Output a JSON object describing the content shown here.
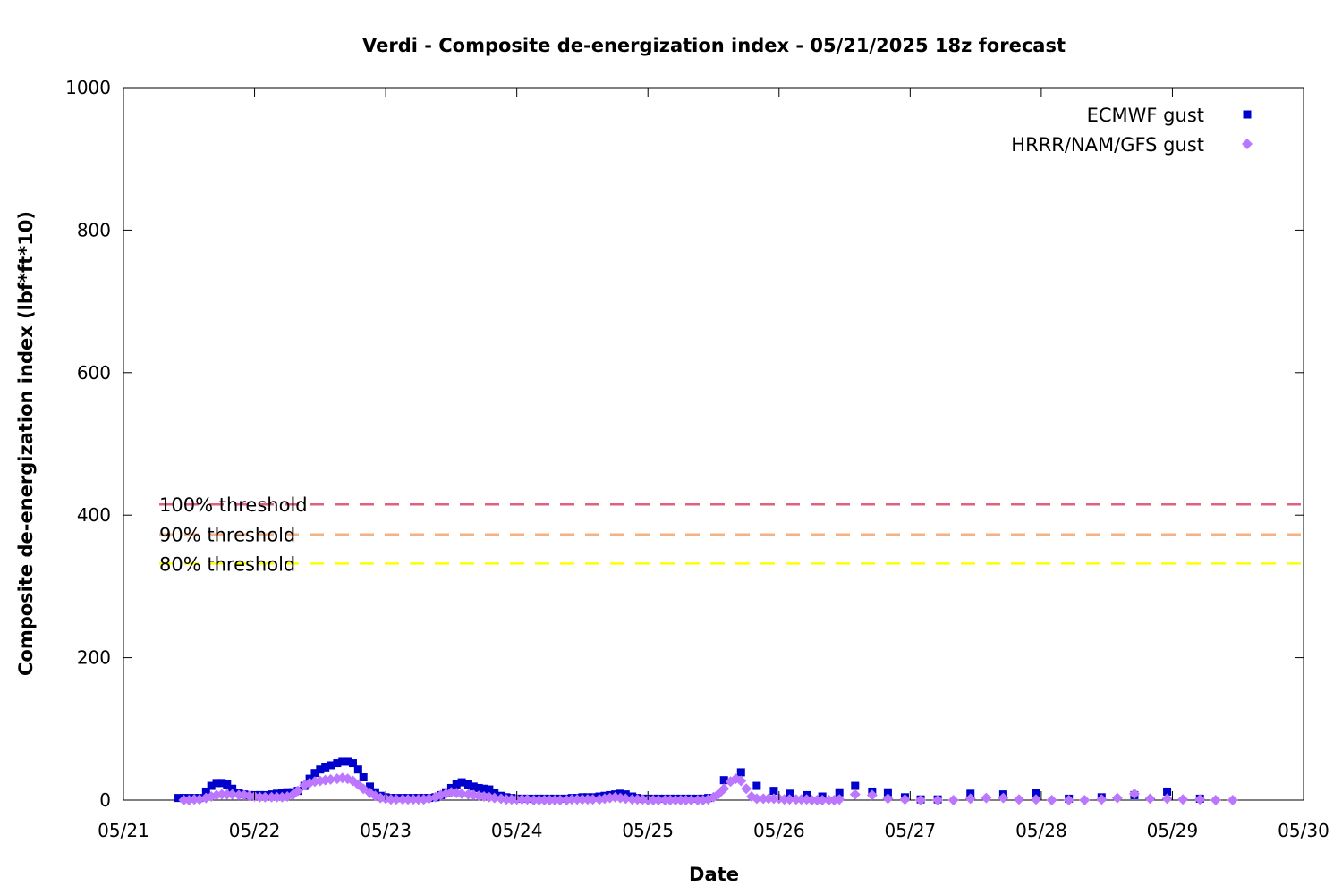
{
  "chart_data": {
    "type": "scatter",
    "title": "Verdi - Composite de-energization index - 05/21/2025 18z forecast",
    "xlabel": "Date",
    "ylabel": "Composite de-energization index (lbf*ft*10)",
    "x_range_days": [
      21,
      30
    ],
    "x_ticks": [
      "05/21",
      "05/22",
      "05/23",
      "05/24",
      "05/25",
      "05/26",
      "05/27",
      "05/28",
      "05/29",
      "05/30"
    ],
    "ylim": [
      0,
      1000
    ],
    "y_ticks": [
      "0",
      "200",
      "400",
      "600",
      "800",
      "1000"
    ],
    "y_tick_values": [
      0,
      200,
      400,
      600,
      800,
      1000
    ],
    "grid": false,
    "legend_position": "top-right",
    "thresholds": [
      {
        "label": "100% threshold",
        "value": 415,
        "color": "#e0607e"
      },
      {
        "label": "90% threshold",
        "value": 373,
        "color": "#f4b183"
      },
      {
        "label": "80% threshold",
        "value": 332,
        "color": "#ffff00"
      }
    ],
    "series": [
      {
        "name": "ECMWF gust",
        "marker": "square",
        "color": "#0000cc",
        "points": [
          [
            21.42,
            3
          ],
          [
            21.46,
            3
          ],
          [
            21.5,
            3
          ],
          [
            21.54,
            3
          ],
          [
            21.58,
            3
          ],
          [
            21.63,
            12
          ],
          [
            21.67,
            20
          ],
          [
            21.71,
            24
          ],
          [
            21.75,
            24
          ],
          [
            21.79,
            22
          ],
          [
            21.83,
            16
          ],
          [
            21.88,
            10
          ],
          [
            21.92,
            8
          ],
          [
            21.96,
            7
          ],
          [
            22.0,
            7
          ],
          [
            22.04,
            7
          ],
          [
            22.08,
            7
          ],
          [
            22.13,
            8
          ],
          [
            22.17,
            9
          ],
          [
            22.21,
            10
          ],
          [
            22.25,
            11
          ],
          [
            22.29,
            11
          ],
          [
            22.33,
            13
          ],
          [
            22.38,
            20
          ],
          [
            22.42,
            30
          ],
          [
            22.46,
            38
          ],
          [
            22.5,
            43
          ],
          [
            22.54,
            46
          ],
          [
            22.58,
            49
          ],
          [
            22.63,
            52
          ],
          [
            22.67,
            54
          ],
          [
            22.71,
            54
          ],
          [
            22.75,
            52
          ],
          [
            22.79,
            43
          ],
          [
            22.83,
            32
          ],
          [
            22.88,
            19
          ],
          [
            22.92,
            11
          ],
          [
            22.96,
            6
          ],
          [
            23.0,
            4
          ],
          [
            23.04,
            3
          ],
          [
            23.08,
            3
          ],
          [
            23.13,
            3
          ],
          [
            23.17,
            3
          ],
          [
            23.21,
            3
          ],
          [
            23.25,
            3
          ],
          [
            23.29,
            3
          ],
          [
            23.33,
            3
          ],
          [
            23.38,
            4
          ],
          [
            23.42,
            7
          ],
          [
            23.46,
            11
          ],
          [
            23.5,
            17
          ],
          [
            23.54,
            22
          ],
          [
            23.58,
            25
          ],
          [
            23.63,
            22
          ],
          [
            23.67,
            19
          ],
          [
            23.71,
            17
          ],
          [
            23.75,
            16
          ],
          [
            23.79,
            15
          ],
          [
            23.83,
            10
          ],
          [
            23.88,
            6
          ],
          [
            23.92,
            4
          ],
          [
            23.96,
            3
          ],
          [
            24.0,
            2
          ],
          [
            24.04,
            2
          ],
          [
            24.08,
            2
          ],
          [
            24.13,
            2
          ],
          [
            24.17,
            2
          ],
          [
            24.21,
            2
          ],
          [
            24.25,
            2
          ],
          [
            24.29,
            2
          ],
          [
            24.33,
            2
          ],
          [
            24.38,
            2
          ],
          [
            24.42,
            3
          ],
          [
            24.46,
            3
          ],
          [
            24.5,
            4
          ],
          [
            24.54,
            4
          ],
          [
            24.58,
            4
          ],
          [
            24.63,
            5
          ],
          [
            24.67,
            6
          ],
          [
            24.71,
            7
          ],
          [
            24.75,
            8
          ],
          [
            24.79,
            9
          ],
          [
            24.83,
            8
          ],
          [
            24.88,
            5
          ],
          [
            24.92,
            3
          ],
          [
            24.96,
            2
          ],
          [
            25.0,
            2
          ],
          [
            25.04,
            2
          ],
          [
            25.08,
            2
          ],
          [
            25.13,
            2
          ],
          [
            25.17,
            2
          ],
          [
            25.21,
            2
          ],
          [
            25.25,
            2
          ],
          [
            25.29,
            2
          ],
          [
            25.33,
            2
          ],
          [
            25.38,
            2
          ],
          [
            25.42,
            2
          ],
          [
            25.46,
            3
          ],
          [
            25.58,
            28
          ],
          [
            25.71,
            39
          ],
          [
            25.83,
            20
          ],
          [
            25.96,
            13
          ],
          [
            26.08,
            9
          ],
          [
            26.21,
            7
          ],
          [
            26.33,
            5
          ],
          [
            26.46,
            11
          ],
          [
            26.58,
            20
          ],
          [
            26.71,
            12
          ],
          [
            26.83,
            11
          ],
          [
            26.96,
            4
          ],
          [
            27.08,
            1
          ],
          [
            27.21,
            1
          ],
          [
            27.46,
            9
          ],
          [
            27.71,
            8
          ],
          [
            27.96,
            10
          ],
          [
            28.21,
            2
          ],
          [
            28.46,
            4
          ],
          [
            28.71,
            7
          ],
          [
            28.96,
            12
          ],
          [
            29.21,
            2
          ]
        ]
      },
      {
        "name": "HRRR/NAM/GFS gust",
        "marker": "diamond",
        "color": "#bb77ff",
        "points": [
          [
            21.46,
            0
          ],
          [
            21.5,
            0
          ],
          [
            21.54,
            1
          ],
          [
            21.58,
            1
          ],
          [
            21.63,
            3
          ],
          [
            21.67,
            5
          ],
          [
            21.71,
            7
          ],
          [
            21.75,
            8
          ],
          [
            21.79,
            8
          ],
          [
            21.83,
            8
          ],
          [
            21.88,
            7
          ],
          [
            21.92,
            7
          ],
          [
            21.96,
            6
          ],
          [
            22.0,
            5
          ],
          [
            22.04,
            4
          ],
          [
            22.08,
            4
          ],
          [
            22.13,
            4
          ],
          [
            22.17,
            4
          ],
          [
            22.21,
            4
          ],
          [
            22.25,
            5
          ],
          [
            22.29,
            7
          ],
          [
            22.33,
            13
          ],
          [
            22.38,
            21
          ],
          [
            22.42,
            24
          ],
          [
            22.46,
            26
          ],
          [
            22.5,
            27
          ],
          [
            22.54,
            28
          ],
          [
            22.58,
            29
          ],
          [
            22.63,
            30
          ],
          [
            22.67,
            31
          ],
          [
            22.71,
            30
          ],
          [
            22.75,
            27
          ],
          [
            22.79,
            22
          ],
          [
            22.83,
            16
          ],
          [
            22.88,
            10
          ],
          [
            22.92,
            6
          ],
          [
            22.96,
            3
          ],
          [
            23.0,
            2
          ],
          [
            23.04,
            1
          ],
          [
            23.08,
            1
          ],
          [
            23.13,
            1
          ],
          [
            23.17,
            1
          ],
          [
            23.21,
            1
          ],
          [
            23.25,
            1
          ],
          [
            23.29,
            1
          ],
          [
            23.33,
            2
          ],
          [
            23.38,
            4
          ],
          [
            23.42,
            7
          ],
          [
            23.46,
            9
          ],
          [
            23.5,
            11
          ],
          [
            23.54,
            10
          ],
          [
            23.58,
            9
          ],
          [
            23.63,
            8
          ],
          [
            23.67,
            7
          ],
          [
            23.71,
            6
          ],
          [
            23.75,
            5
          ],
          [
            23.79,
            4
          ],
          [
            23.83,
            3
          ],
          [
            23.88,
            2
          ],
          [
            23.92,
            1
          ],
          [
            23.96,
            1
          ],
          [
            24.0,
            1
          ],
          [
            24.04,
            1
          ],
          [
            24.08,
            1
          ],
          [
            24.13,
            0
          ],
          [
            24.17,
            0
          ],
          [
            24.21,
            0
          ],
          [
            24.25,
            0
          ],
          [
            24.29,
            0
          ],
          [
            24.33,
            0
          ],
          [
            24.38,
            0
          ],
          [
            24.42,
            1
          ],
          [
            24.46,
            1
          ],
          [
            24.5,
            1
          ],
          [
            24.54,
            1
          ],
          [
            24.58,
            1
          ],
          [
            24.63,
            1
          ],
          [
            24.67,
            2
          ],
          [
            24.71,
            3
          ],
          [
            24.75,
            4
          ],
          [
            24.79,
            3
          ],
          [
            24.83,
            2
          ],
          [
            24.88,
            1
          ],
          [
            24.92,
            1
          ],
          [
            24.96,
            1
          ],
          [
            25.0,
            0
          ],
          [
            25.04,
            0
          ],
          [
            25.08,
            0
          ],
          [
            25.13,
            0
          ],
          [
            25.17,
            0
          ],
          [
            25.21,
            0
          ],
          [
            25.25,
            0
          ],
          [
            25.29,
            0
          ],
          [
            25.33,
            0
          ],
          [
            25.38,
            0
          ],
          [
            25.42,
            0
          ],
          [
            25.46,
            1
          ],
          [
            25.5,
            4
          ],
          [
            25.54,
            9
          ],
          [
            25.58,
            16
          ],
          [
            25.63,
            26
          ],
          [
            25.67,
            30
          ],
          [
            25.71,
            27
          ],
          [
            25.75,
            16
          ],
          [
            25.79,
            5
          ],
          [
            25.83,
            2
          ],
          [
            25.88,
            2
          ],
          [
            25.92,
            2
          ],
          [
            25.96,
            2
          ],
          [
            26.0,
            2
          ],
          [
            26.04,
            1
          ],
          [
            26.08,
            1
          ],
          [
            26.13,
            1
          ],
          [
            26.17,
            1
          ],
          [
            26.21,
            1
          ],
          [
            26.25,
            0
          ],
          [
            26.29,
            0
          ],
          [
            26.33,
            0
          ],
          [
            26.38,
            0
          ],
          [
            26.42,
            0
          ],
          [
            26.46,
            1
          ],
          [
            26.58,
            8
          ],
          [
            26.71,
            7
          ],
          [
            26.83,
            2
          ],
          [
            26.96,
            1
          ],
          [
            27.08,
            0
          ],
          [
            27.21,
            0
          ],
          [
            27.33,
            0
          ],
          [
            27.46,
            2
          ],
          [
            27.58,
            3
          ],
          [
            27.71,
            3
          ],
          [
            27.83,
            1
          ],
          [
            27.96,
            1
          ],
          [
            28.08,
            0
          ],
          [
            28.21,
            0
          ],
          [
            28.33,
            0
          ],
          [
            28.46,
            1
          ],
          [
            28.58,
            3
          ],
          [
            28.71,
            9
          ],
          [
            28.83,
            2
          ],
          [
            28.96,
            2
          ],
          [
            29.08,
            1
          ],
          [
            29.21,
            1
          ],
          [
            29.33,
            0
          ],
          [
            29.46,
            0
          ]
        ]
      }
    ]
  }
}
